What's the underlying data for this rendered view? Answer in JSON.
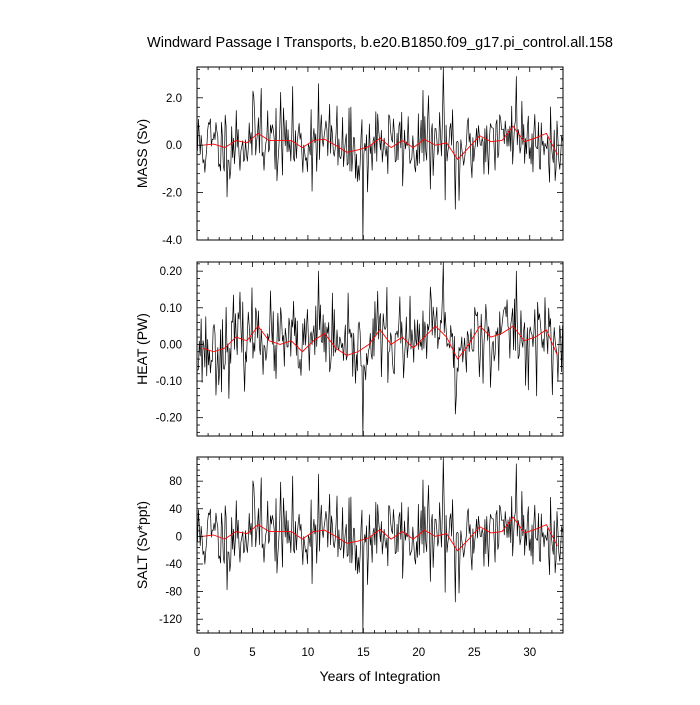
{
  "title": "Windward Passage I Transports, b.e20.B1850.f09_g17.pi_control.all.158",
  "xlabel": "Years of Integration",
  "chart_data": [
    {
      "type": "line",
      "ylabel": "MASS (Sv)",
      "xlim": [
        0,
        33
      ],
      "ylim": [
        -4.0,
        3.3
      ],
      "xticks": [
        0,
        5,
        10,
        15,
        20,
        25,
        30
      ],
      "yticks": [
        2.0,
        0.0,
        -2.0,
        -4.0
      ],
      "ytick_labels": [
        "2.0",
        "0.0",
        "-2.0",
        "-4.0"
      ],
      "series": [
        {
          "kind": "monthly",
          "color": "#000000",
          "seed": 11,
          "noise_sd": 0.85,
          "spikes": [
            [
              15.0,
              -4.0
            ],
            [
              22.2,
              3.3
            ],
            [
              23.3,
              -2.7
            ],
            [
              28.8,
              2.9
            ],
            [
              11.0,
              2.6
            ],
            [
              5.8,
              2.4
            ]
          ]
        },
        {
          "kind": "annual",
          "color": "#ff0000",
          "points": [
            [
              0.5,
              0.0
            ],
            [
              1.5,
              0.05
            ],
            [
              2.5,
              -0.1
            ],
            [
              3.5,
              0.2
            ],
            [
              4.5,
              0.1
            ],
            [
              5.5,
              0.5
            ],
            [
              6.5,
              0.2
            ],
            [
              7.5,
              0.2
            ],
            [
              8.5,
              0.2
            ],
            [
              9.5,
              -0.1
            ],
            [
              10.5,
              0.2
            ],
            [
              11.5,
              0.25
            ],
            [
              12.5,
              0.0
            ],
            [
              13.5,
              -0.3
            ],
            [
              14.5,
              -0.2
            ],
            [
              15.5,
              -0.05
            ],
            [
              16.5,
              0.3
            ],
            [
              17.5,
              -0.1
            ],
            [
              18.5,
              0.2
            ],
            [
              19.5,
              -0.1
            ],
            [
              20.5,
              0.25
            ],
            [
              21.5,
              0.0
            ],
            [
              22.5,
              0.1
            ],
            [
              23.5,
              -0.6
            ],
            [
              24.5,
              -0.1
            ],
            [
              25.5,
              0.4
            ],
            [
              26.5,
              0.15
            ],
            [
              27.5,
              0.2
            ],
            [
              28.5,
              0.8
            ],
            [
              29.5,
              0.15
            ],
            [
              30.5,
              0.3
            ],
            [
              31.5,
              0.5
            ],
            [
              32.5,
              -0.4
            ]
          ]
        }
      ]
    },
    {
      "type": "line",
      "ylabel": "HEAT (PW)",
      "xlim": [
        0,
        33
      ],
      "ylim": [
        -0.25,
        0.225
      ],
      "xticks": [
        0,
        5,
        10,
        15,
        20,
        25,
        30
      ],
      "yticks": [
        0.2,
        0.1,
        0.0,
        -0.1,
        -0.2
      ],
      "ytick_labels": [
        "0.20",
        "0.10",
        "0.00",
        "-0.10",
        "-0.20"
      ],
      "series": [
        {
          "kind": "monthly",
          "color": "#000000",
          "seed": 23,
          "noise_sd": 0.055,
          "spikes": [
            [
              15.0,
              -0.25
            ],
            [
              22.2,
              0.225
            ],
            [
              11.0,
              0.2
            ],
            [
              28.8,
              0.2
            ],
            [
              23.3,
              -0.19
            ]
          ]
        },
        {
          "kind": "annual",
          "color": "#ff0000",
          "points": [
            [
              0.5,
              -0.01
            ],
            [
              1.5,
              -0.02
            ],
            [
              2.5,
              -0.01
            ],
            [
              3.5,
              0.02
            ],
            [
              4.5,
              0.01
            ],
            [
              5.5,
              0.05
            ],
            [
              6.5,
              0.01
            ],
            [
              7.5,
              0.0
            ],
            [
              8.5,
              0.01
            ],
            [
              9.5,
              -0.02
            ],
            [
              10.5,
              0.01
            ],
            [
              11.5,
              0.03
            ],
            [
              12.5,
              -0.01
            ],
            [
              13.5,
              -0.03
            ],
            [
              14.5,
              -0.02
            ],
            [
              15.5,
              0.0
            ],
            [
              16.5,
              0.04
            ],
            [
              17.5,
              0.0
            ],
            [
              18.5,
              0.02
            ],
            [
              19.5,
              -0.01
            ],
            [
              20.5,
              0.02
            ],
            [
              21.5,
              0.05
            ],
            [
              22.5,
              0.02
            ],
            [
              23.5,
              -0.04
            ],
            [
              24.5,
              0.0
            ],
            [
              25.5,
              0.05
            ],
            [
              26.5,
              0.02
            ],
            [
              27.5,
              0.03
            ],
            [
              28.5,
              0.05
            ],
            [
              29.5,
              0.01
            ],
            [
              30.5,
              0.02
            ],
            [
              31.5,
              0.04
            ],
            [
              32.5,
              -0.03
            ]
          ]
        }
      ]
    },
    {
      "type": "line",
      "ylabel": "SALT (Sv*ppt)",
      "xlim": [
        0,
        33
      ],
      "ylim": [
        -140,
        115
      ],
      "xticks": [
        0,
        5,
        10,
        15,
        20,
        25,
        30
      ],
      "yticks": [
        80,
        40,
        0,
        -40,
        -80,
        -120
      ],
      "ytick_labels": [
        "80",
        "40",
        "0",
        "-40",
        "-80",
        "-120"
      ],
      "series": [
        {
          "kind": "monthly",
          "color": "#000000",
          "seed": 11,
          "noise_sd": 30,
          "spikes": [
            [
              15.0,
              -140
            ],
            [
              22.2,
              115
            ],
            [
              23.3,
              -95
            ],
            [
              28.8,
              105
            ],
            [
              11.0,
              90
            ],
            [
              5.8,
              85
            ]
          ]
        },
        {
          "kind": "annual",
          "color": "#ff0000",
          "points": [
            [
              0.5,
              0
            ],
            [
              1.5,
              2
            ],
            [
              2.5,
              -4
            ],
            [
              3.5,
              7
            ],
            [
              4.5,
              4
            ],
            [
              5.5,
              17
            ],
            [
              6.5,
              7
            ],
            [
              7.5,
              7
            ],
            [
              8.5,
              7
            ],
            [
              9.5,
              -4
            ],
            [
              10.5,
              7
            ],
            [
              11.5,
              9
            ],
            [
              12.5,
              0
            ],
            [
              13.5,
              -10
            ],
            [
              14.5,
              -7
            ],
            [
              15.5,
              -2
            ],
            [
              16.5,
              10
            ],
            [
              17.5,
              -4
            ],
            [
              18.5,
              7
            ],
            [
              19.5,
              -4
            ],
            [
              20.5,
              9
            ],
            [
              21.5,
              0
            ],
            [
              22.5,
              4
            ],
            [
              23.5,
              -21
            ],
            [
              24.5,
              -4
            ],
            [
              25.5,
              14
            ],
            [
              26.5,
              5
            ],
            [
              27.5,
              7
            ],
            [
              28.5,
              28
            ],
            [
              29.5,
              5
            ],
            [
              30.5,
              10
            ],
            [
              31.5,
              17
            ],
            [
              32.5,
              -14
            ]
          ]
        }
      ]
    }
  ]
}
